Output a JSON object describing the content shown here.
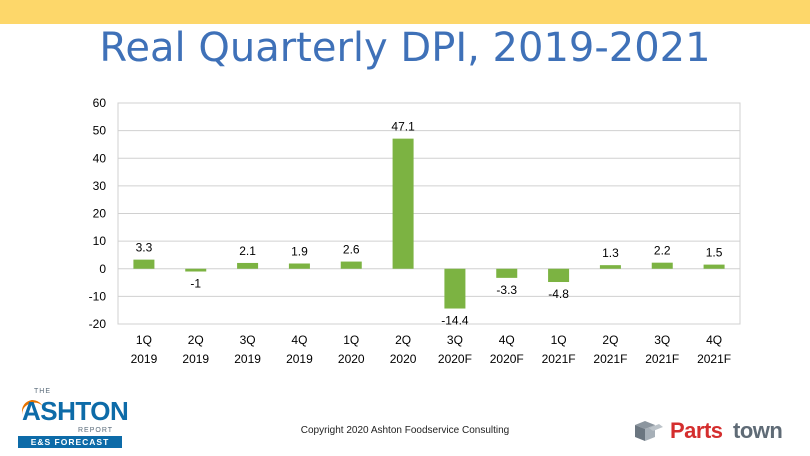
{
  "colors": {
    "top_bar": "#fdd76a",
    "title": "#3f71b8",
    "bar": "#7cb342",
    "grid": "#d0d0d0",
    "axis_text": "#000000",
    "ashton_blue": "#0d6ba8",
    "ashton_orange": "#e57200",
    "parts_red": "#d42e2e",
    "parts_gray": "#5f6b76"
  },
  "slide": {
    "title": "Real Quarterly DPI, 2019-2021",
    "copyright": "Copyright 2020 Ashton Foodservice Consulting"
  },
  "logo_left": {
    "the": "THE",
    "name": "ASHTON",
    "report": "REPORT",
    "strip": "E&S FORECAST"
  },
  "logo_right": {
    "parts": "Parts",
    "town": "town"
  },
  "chart_data": {
    "type": "bar",
    "title": "",
    "xlabel": "",
    "ylabel": "",
    "ylim": [
      -20,
      60
    ],
    "yticks": [
      60,
      50,
      40,
      30,
      20,
      10,
      0,
      -10,
      -20
    ],
    "grid": true,
    "categories": [
      [
        "1Q",
        "2019"
      ],
      [
        "2Q",
        "2019"
      ],
      [
        "3Q",
        "2019"
      ],
      [
        "4Q",
        "2019"
      ],
      [
        "1Q",
        "2020"
      ],
      [
        "2Q",
        "2020"
      ],
      [
        "3Q",
        "2020F"
      ],
      [
        "4Q",
        "2020F"
      ],
      [
        "1Q",
        "2021F"
      ],
      [
        "2Q",
        "2021F"
      ],
      [
        "3Q",
        "2021F"
      ],
      [
        "4Q",
        "2021F"
      ]
    ],
    "values": [
      3.3,
      -1,
      2.1,
      1.9,
      2.6,
      47.1,
      -14.4,
      -3.3,
      -4.8,
      1.3,
      2.2,
      1.5
    ],
    "data_labels": [
      "3.3",
      "-1",
      "2.1",
      "1.9",
      "2.6",
      "47.1",
      "-14.4",
      "-3.3",
      "-4.8",
      "1.3",
      "2.2",
      "1.5"
    ]
  }
}
